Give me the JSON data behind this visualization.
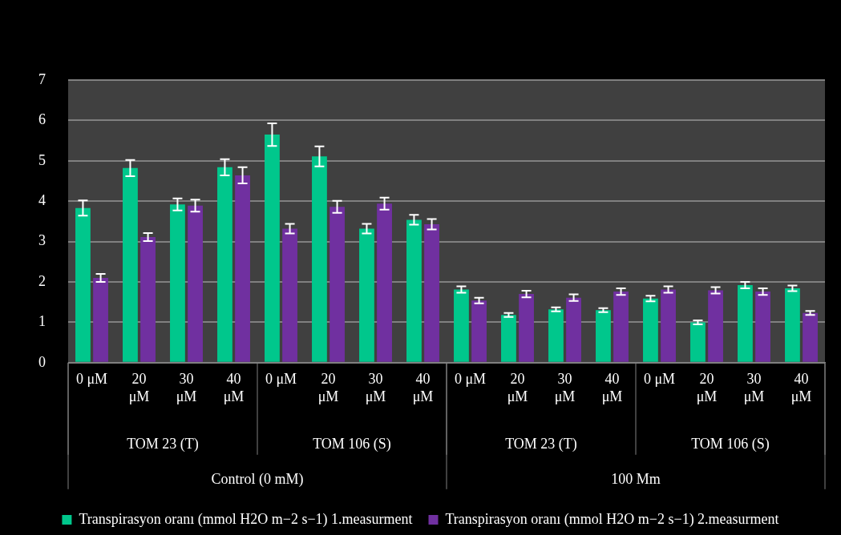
{
  "chart_data": {
    "type": "bar",
    "categories": [
      "0 μM",
      "20 μM",
      "30 μM",
      "40 μM",
      "0 μM",
      "20 μM",
      "30 μM",
      "40 μM",
      "0 μM",
      "20 μM",
      "30 μM",
      "40 μM",
      "0 μM",
      "20 μM",
      "30 μM",
      "40 μM"
    ],
    "series": [
      {
        "name": "Transpirasyon oranı (mmol H2O m−2 s−1) 1.measurment",
        "color": "#00c78c",
        "values": [
          3.83,
          4.82,
          3.92,
          4.84,
          5.65,
          5.11,
          3.32,
          3.54,
          1.81,
          1.18,
          1.32,
          1.3,
          1.59,
          1.0,
          1.92,
          1.84
        ],
        "errors": [
          0.19,
          0.2,
          0.15,
          0.2,
          0.28,
          0.25,
          0.12,
          0.12,
          0.08,
          0.05,
          0.05,
          0.05,
          0.07,
          0.05,
          0.08,
          0.07
        ]
      },
      {
        "name": "Transpirasyon oranı (mmol H2O m−2 s−1) 2.measurment",
        "color": "#7030a0",
        "values": [
          2.1,
          3.11,
          3.89,
          4.64,
          3.32,
          3.86,
          3.94,
          3.43,
          1.54,
          1.7,
          1.61,
          1.76,
          1.81,
          1.79,
          1.76,
          1.23
        ],
        "errors": [
          0.1,
          0.1,
          0.15,
          0.2,
          0.12,
          0.15,
          0.15,
          0.13,
          0.07,
          0.08,
          0.08,
          0.08,
          0.08,
          0.08,
          0.08,
          0.05
        ]
      }
    ],
    "ylim": [
      0,
      7
    ],
    "yticks": [
      0,
      1,
      2,
      3,
      4,
      5,
      6,
      7
    ],
    "grid": "y",
    "legend": "bottom",
    "annotations": [
      "TOM 23 (T)",
      "TOM 106 (S)",
      "TOM 23 (T)",
      "TOM 106 (S)",
      "Control (0 mM)",
      "100 Mm"
    ]
  }
}
